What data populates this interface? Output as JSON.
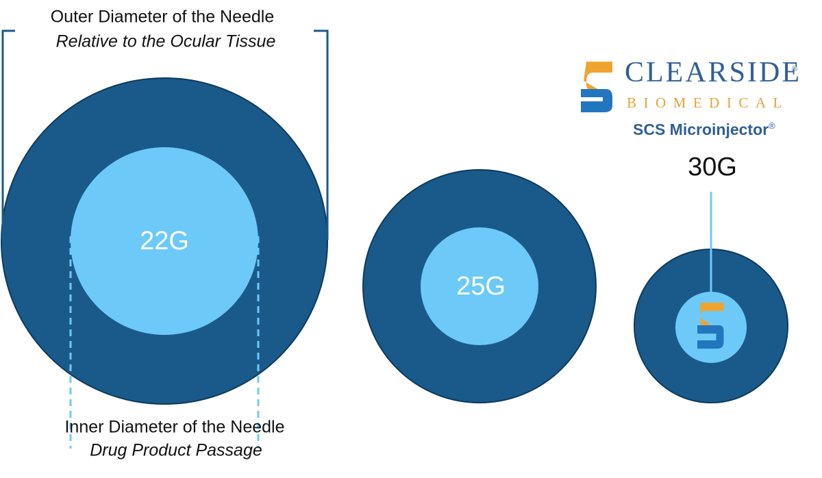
{
  "header": {
    "title": "Outer Diameter of the Needle",
    "subtitle": "Relative to the Ocular Tissue"
  },
  "needles": [
    {
      "label": "22G"
    },
    {
      "label": "25G"
    },
    {
      "label": "30G"
    }
  ],
  "footer": {
    "title": "Inner Diameter of the Needle",
    "subtitle": "Drug Product Passage"
  },
  "logo": {
    "name": "CLEARSIDE",
    "tagline": "BIOMEDICAL",
    "product": "SCS Microinjector",
    "mark": "®"
  }
}
